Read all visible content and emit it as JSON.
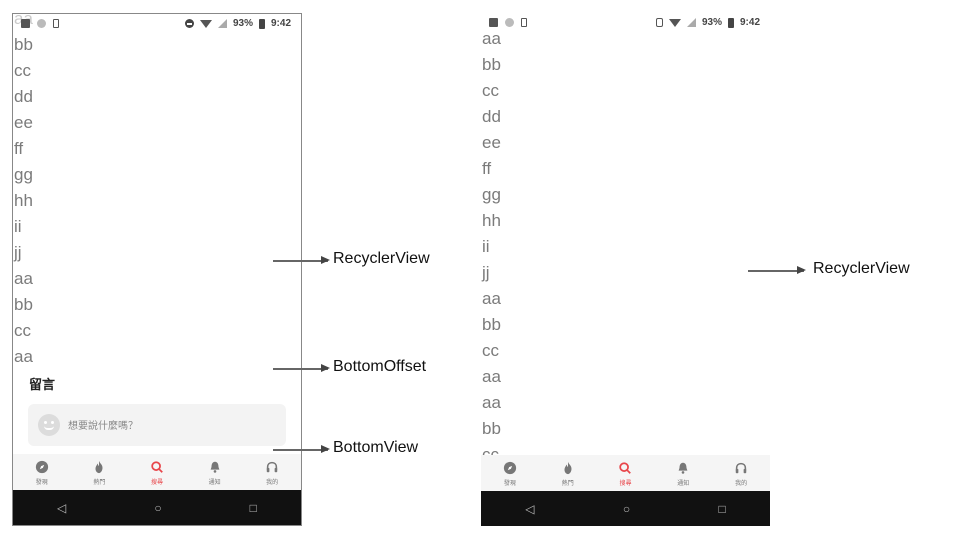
{
  "left_phone": {
    "status_bar": {
      "battery": "93%",
      "time": "9:42"
    },
    "list_items": [
      "aa",
      "bb",
      "cc",
      "dd",
      "ee",
      "ff",
      "gg",
      "hh",
      "ii",
      "jj",
      "aa",
      "bb",
      "cc",
      "aa"
    ],
    "comment_section": {
      "title": "留言",
      "placeholder": "想要說什麼嗎？"
    },
    "tabs": [
      {
        "label": "發現",
        "icon": "compass-icon",
        "active": false
      },
      {
        "label": "熱門",
        "icon": "flame-icon",
        "active": false
      },
      {
        "label": "搜尋",
        "icon": "search-icon",
        "active": true
      },
      {
        "label": "通知",
        "icon": "bell-icon",
        "active": false
      },
      {
        "label": "我的",
        "icon": "headphones-icon",
        "active": false
      }
    ]
  },
  "right_phone": {
    "status_bar": {
      "battery": "93%",
      "time": "9:42"
    },
    "list_items": [
      "aa",
      "bb",
      "cc",
      "dd",
      "ee",
      "ff",
      "gg",
      "hh",
      "ii",
      "jj",
      "aa",
      "bb",
      "cc",
      "aa",
      "aa",
      "bb",
      "cc"
    ],
    "tabs": [
      {
        "label": "發現",
        "icon": "compass-icon",
        "active": false
      },
      {
        "label": "熱門",
        "icon": "flame-icon",
        "active": false
      },
      {
        "label": "搜尋",
        "icon": "search-icon",
        "active": true
      },
      {
        "label": "通知",
        "icon": "bell-icon",
        "active": false
      },
      {
        "label": "我的",
        "icon": "headphones-icon",
        "active": false
      }
    ]
  },
  "annotations": {
    "left": [
      "RecyclerView",
      "BottomOffset",
      "BottomView"
    ],
    "right": [
      "RecyclerView"
    ]
  },
  "colors": {
    "accent": "#e8454a",
    "list_text": "#7b7b7b",
    "nav_bar": "#111111"
  }
}
